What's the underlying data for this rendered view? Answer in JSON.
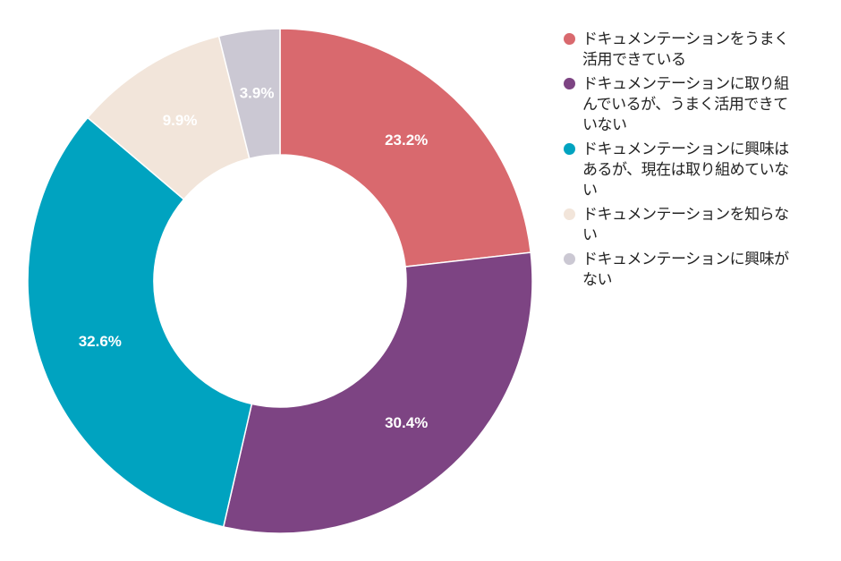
{
  "chart_data": {
    "type": "pie",
    "donut": true,
    "start": "top, clockwise",
    "legend_position": "right",
    "categories": [
      "ドキュメンテーションをうまく活用できている",
      "ドキュメンテーションに取り組んでいるが、うまく活用できていない",
      "ドキュメンテーションに興味はあるが、現在は取り組めていない",
      "ドキュメンテーションを知らない",
      "ドキュメンテーションに興味がない"
    ],
    "values": [
      23.2,
      30.4,
      32.6,
      9.9,
      3.9
    ],
    "data_labels": [
      "23.2%",
      "30.4%",
      "32.6%",
      "9.9%",
      "3.9%"
    ],
    "colors": [
      "#d9696e",
      "#7d4483",
      "#00a3c0",
      "#f2e5da",
      "#cbc8d3"
    ]
  }
}
